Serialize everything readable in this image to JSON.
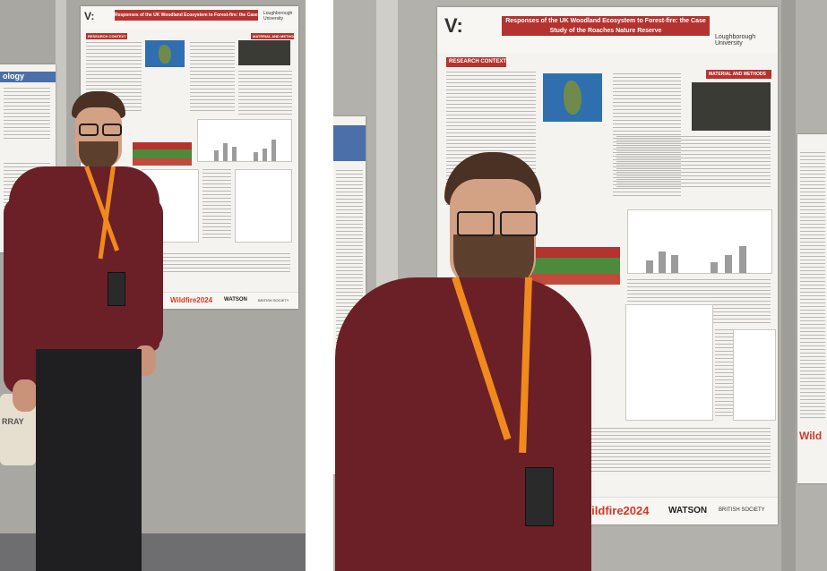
{
  "poster": {
    "title": "Responses of the UK Woodland Ecosystem to Forest-fire: the Case Study of the Roaches Nature Reserve",
    "university": "Loughborough University",
    "sections": {
      "research_context": "RESEARCH CONTEXT",
      "material_and_methods": "MATERIAL AND METHODS"
    },
    "footer": {
      "wildfire": "Wildfire2024",
      "watson": "WATSON",
      "bes": "BRITISH SOCIETY"
    }
  },
  "side_poster": {
    "left_label": "ology",
    "right_label": "Wild"
  },
  "bag_text": "RRAY",
  "colors": {
    "title_band": "#b5332f",
    "sweater": "#6b2027",
    "lanyard": "#f08a1d",
    "wall": "#b1b0ab"
  }
}
